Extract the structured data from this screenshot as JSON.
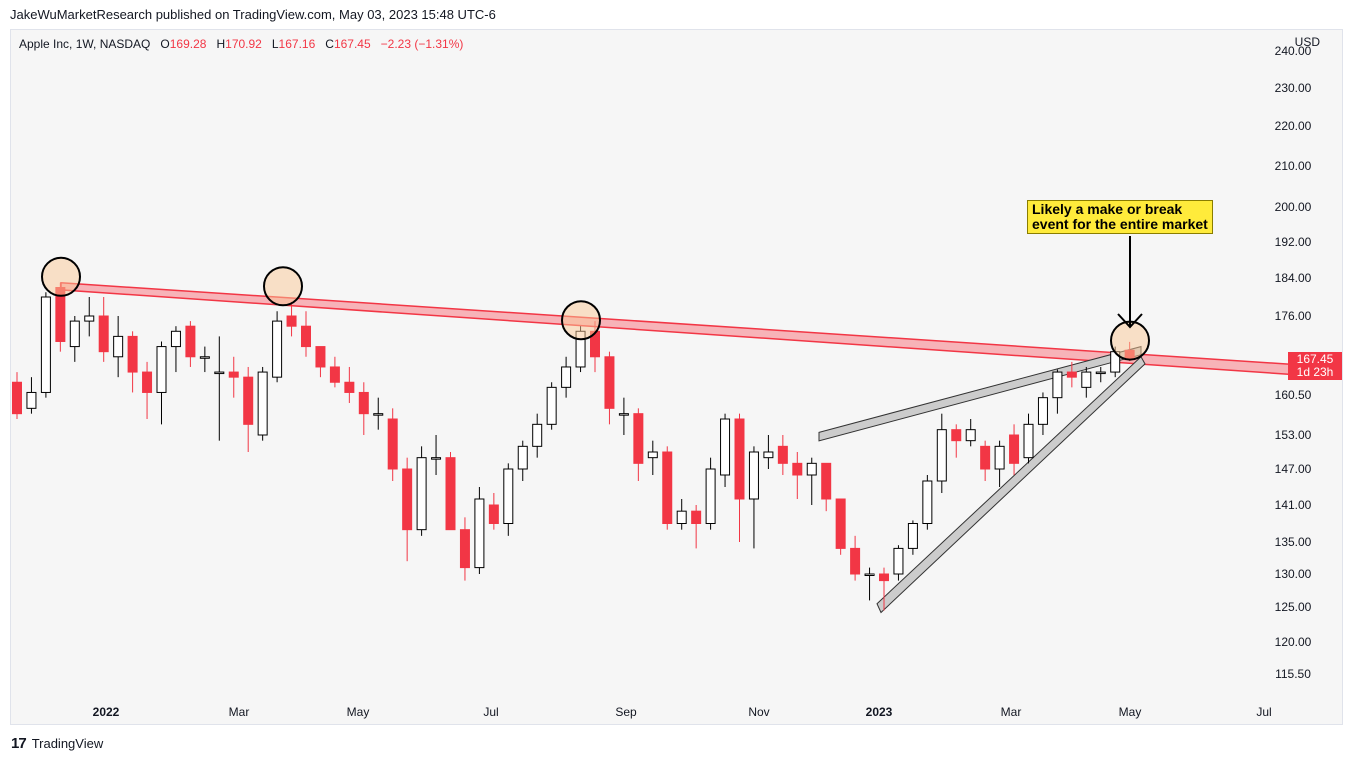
{
  "header": {
    "publish_line": "JakeWuMarketResearch published on TradingView.com, May 03, 2023 15:48 UTC-6"
  },
  "legend": {
    "symbol": "Apple Inc, 1W, NASDAQ",
    "o_label": "O",
    "o_value": "169.28",
    "h_label": "H",
    "h_value": "170.92",
    "l_label": "L",
    "l_value": "167.16",
    "c_label": "C",
    "c_value": "167.45",
    "change": "−2.23 (−1.31%)"
  },
  "currency": "USD",
  "price_tag": {
    "price": "167.45",
    "countdown": "1d 23h"
  },
  "callout": {
    "line1": "Likely a make or break",
    "line2": "event for the entire market"
  },
  "footer": {
    "logo": "17",
    "brand": "TradingView"
  },
  "colors": {
    "up_fill": "#ffffff",
    "up_border": "#000000",
    "down": "#f23645",
    "resistance": "#f23645",
    "wedge": "#555555",
    "callout_bg": "#ffeb3b"
  },
  "chart_data": {
    "type": "candlestick",
    "y_ticks": [
      "240.00",
      "230.00",
      "220.00",
      "210.00",
      "200.00",
      "192.00",
      "184.00",
      "176.00",
      "160.50",
      "153.00",
      "147.00",
      "141.00",
      "135.00",
      "130.00",
      "125.00",
      "120.00",
      "115.50"
    ],
    "x_ticks": [
      "2022",
      "Mar",
      "May",
      "Jul",
      "Sep",
      "Nov",
      "2023",
      "Mar",
      "May",
      "Jul"
    ],
    "ylim": [
      112,
      242
    ],
    "candles": [
      [
        163.0,
        157.0,
        165.0,
        156.0
      ],
      [
        158.0,
        161.0,
        164.0,
        157.0
      ],
      [
        161.0,
        180.0,
        181.0,
        160.0
      ],
      [
        182.0,
        171.0,
        183.0,
        169.0
      ],
      [
        170.0,
        175.0,
        176.0,
        167.0
      ],
      [
        175.0,
        176.0,
        180.0,
        172.0
      ],
      [
        176.0,
        169.0,
        180.0,
        167.0
      ],
      [
        168.0,
        172.0,
        176.0,
        164.0
      ],
      [
        172.0,
        165.0,
        173.0,
        161.0
      ],
      [
        165.0,
        161.0,
        167.0,
        156.0
      ],
      [
        161.0,
        170.0,
        171.0,
        155.0
      ],
      [
        170.0,
        173.0,
        174.0,
        165.0
      ],
      [
        174.0,
        168.0,
        175.0,
        166.0
      ],
      [
        168.0,
        168.0,
        170.0,
        165.0
      ],
      [
        165.0,
        165.0,
        172.0,
        152.0
      ],
      [
        165.0,
        164.0,
        168.0,
        160.0
      ],
      [
        164.0,
        155.0,
        166.0,
        150.0
      ],
      [
        153.0,
        165.0,
        166.0,
        152.0
      ],
      [
        164.0,
        175.0,
        177.0,
        163.0
      ],
      [
        176.0,
        174.0,
        179.0,
        172.0
      ],
      [
        174.0,
        170.0,
        177.0,
        168.0
      ],
      [
        170.0,
        166.0,
        170.0,
        164.0
      ],
      [
        166.0,
        163.0,
        168.0,
        162.0
      ],
      [
        163.0,
        161.0,
        166.0,
        159.0
      ],
      [
        161.0,
        157.0,
        163.0,
        153.0
      ],
      [
        157.0,
        157.0,
        160.0,
        154.0
      ],
      [
        156.0,
        147.0,
        158.0,
        145.0
      ],
      [
        147.0,
        137.0,
        149.0,
        132.0
      ],
      [
        137.0,
        149.0,
        151.0,
        136.0
      ],
      [
        149.0,
        149.0,
        153.0,
        146.0
      ],
      [
        149.0,
        137.0,
        150.0,
        137.0
      ],
      [
        137.0,
        131.0,
        139.0,
        129.0
      ],
      [
        131.0,
        142.0,
        144.0,
        130.0
      ],
      [
        141.0,
        138.0,
        143.0,
        137.0
      ],
      [
        138.0,
        147.0,
        148.0,
        136.0
      ],
      [
        147.0,
        151.0,
        152.0,
        145.0
      ],
      [
        151.0,
        155.0,
        157.0,
        149.0
      ],
      [
        155.0,
        162.0,
        163.0,
        154.0
      ],
      [
        162.0,
        166.0,
        168.0,
        160.0
      ],
      [
        166.0,
        173.0,
        174.0,
        165.0
      ],
      [
        173.0,
        168.0,
        175.0,
        165.0
      ],
      [
        168.0,
        158.0,
        169.0,
        155.0
      ],
      [
        157.0,
        157.0,
        160.0,
        153.0
      ],
      [
        157.0,
        148.0,
        158.0,
        145.0
      ],
      [
        149.0,
        150.0,
        152.0,
        146.0
      ],
      [
        150.0,
        138.0,
        151.0,
        137.0
      ],
      [
        138.0,
        140.0,
        142.0,
        137.0
      ],
      [
        140.0,
        138.0,
        141.0,
        134.0
      ],
      [
        138.0,
        147.0,
        149.0,
        137.0
      ],
      [
        146.0,
        156.0,
        157.0,
        144.0
      ],
      [
        156.0,
        142.0,
        157.0,
        135.0
      ],
      [
        142.0,
        150.0,
        151.0,
        134.0
      ],
      [
        149.0,
        150.0,
        153.0,
        147.0
      ],
      [
        151.0,
        148.0,
        153.0,
        146.0
      ],
      [
        148.0,
        146.0,
        150.0,
        142.0
      ],
      [
        146.0,
        148.0,
        149.0,
        141.0
      ],
      [
        148.0,
        142.0,
        148.0,
        140.0
      ],
      [
        142.0,
        134.0,
        142.0,
        133.0
      ],
      [
        134.0,
        130.0,
        136.0,
        129.0
      ],
      [
        130.0,
        130.0,
        131.0,
        126.0
      ],
      [
        130.0,
        129.0,
        131.0,
        124.5
      ],
      [
        130.0,
        134.0,
        134.5,
        129.0
      ],
      [
        134.0,
        138.0,
        138.5,
        133.0
      ],
      [
        138.0,
        145.0,
        146.0,
        137.0
      ],
      [
        145.0,
        154.0,
        157.0,
        143.0
      ],
      [
        154.0,
        152.0,
        155.0,
        149.0
      ],
      [
        152.0,
        154.0,
        156.0,
        151.0
      ],
      [
        151.0,
        147.0,
        152.0,
        145.0
      ],
      [
        147.0,
        151.0,
        152.0,
        144.0
      ],
      [
        153.0,
        148.0,
        155.0,
        146.0
      ],
      [
        149.0,
        155.0,
        157.0,
        148.0
      ],
      [
        155.0,
        160.0,
        161.0,
        153.0
      ],
      [
        160.0,
        165.0,
        165.5,
        157.0
      ],
      [
        165.0,
        164.0,
        167.0,
        162.0
      ],
      [
        162.0,
        165.0,
        166.0,
        160.0
      ],
      [
        165.0,
        165.0,
        166.0,
        163.0
      ],
      [
        165.0,
        169.0,
        170.0,
        164.0
      ],
      [
        169.28,
        167.45,
        170.92,
        167.16
      ]
    ],
    "resistance_line": {
      "x": [
        "2021-12-10",
        "2023-07-25"
      ],
      "y_upper": [
        183.0,
        166.0
      ],
      "y_lower": [
        181.5,
        164.0
      ]
    },
    "wedge_upper": {
      "x": [
        "2022-11-25",
        "2023-05-03"
      ],
      "y_upper": [
        153.5,
        170.0
      ],
      "y_lower": [
        152.5,
        169.0
      ]
    },
    "wedge_lower": {
      "x": [
        "2022-12-27",
        "2023-05-03"
      ],
      "y_upper": [
        125.5,
        168.0
      ],
      "y_lower": [
        124.5,
        167.0
      ]
    }
  }
}
